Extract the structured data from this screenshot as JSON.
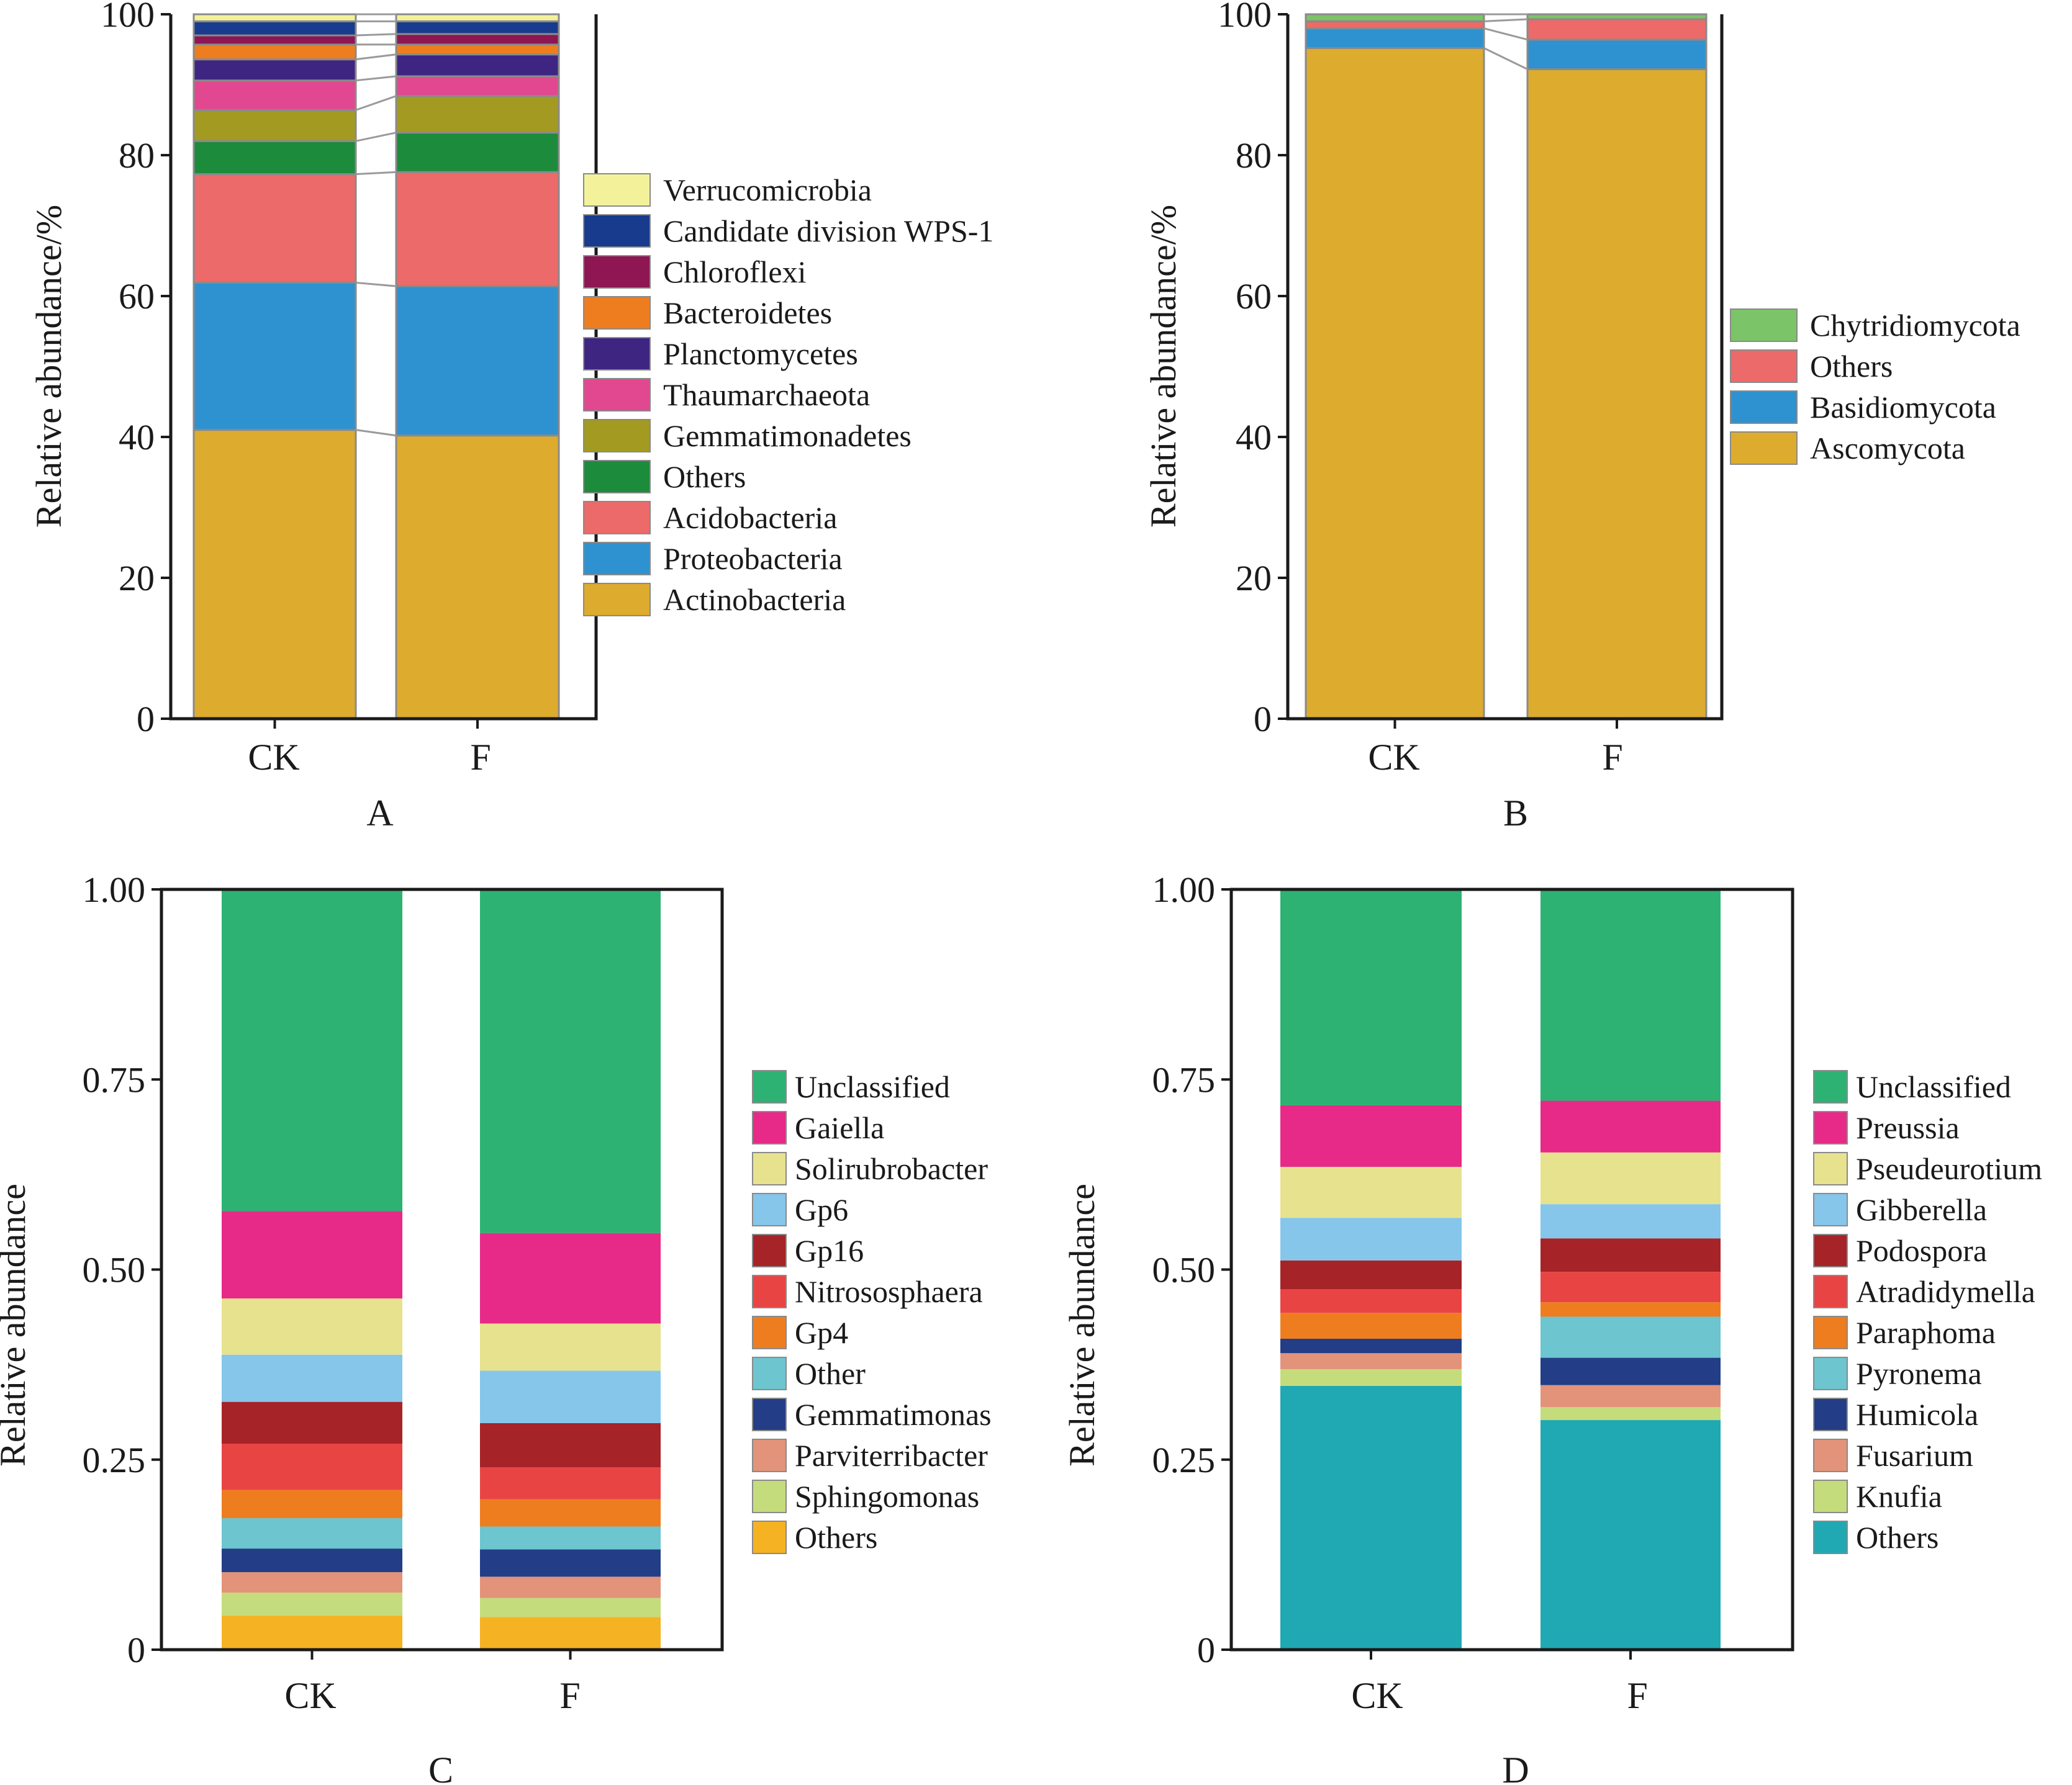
{
  "chart_data": [
    {
      "type": "bar",
      "panel_label": "A",
      "stacked": true,
      "ylabel": "Relative abundance/%",
      "ylim": [
        0,
        100
      ],
      "yticks": [
        0,
        20,
        40,
        60,
        80,
        100
      ],
      "categories": [
        "CK",
        "F"
      ],
      "series": [
        {
          "name": "Actinobacteria",
          "color": "#DDAB2E",
          "values": [
            41.0,
            40.2
          ]
        },
        {
          "name": "Proteobacteria",
          "color": "#2E92D1",
          "values": [
            20.9,
            21.2
          ]
        },
        {
          "name": "Acidobacteria",
          "color": "#EC6A69",
          "values": [
            15.4,
            16.2
          ]
        },
        {
          "name": "Others",
          "color": "#1D8B3C",
          "values": [
            4.7,
            5.6
          ]
        },
        {
          "name": "Gemmatimonadetes",
          "color": "#A39A22",
          "values": [
            4.4,
            5.2
          ]
        },
        {
          "name": "Thaumarchaeota",
          "color": "#E2488F",
          "values": [
            4.2,
            2.8
          ]
        },
        {
          "name": "Planctomycetes",
          "color": "#3E2582",
          "values": [
            3.0,
            3.1
          ]
        },
        {
          "name": "Bacteroidetes",
          "color": "#EE7D20",
          "values": [
            2.1,
            1.4
          ]
        },
        {
          "name": "Chloroflexi",
          "color": "#8E1652",
          "values": [
            1.3,
            1.5
          ]
        },
        {
          "name": "Candidate division WPS-1",
          "color": "#183B8E",
          "values": [
            2.0,
            1.8
          ]
        },
        {
          "name": "Verrucomicrobia",
          "color": "#F3F29A",
          "values": [
            1.0,
            1.0
          ]
        }
      ],
      "legend_position": "right"
    },
    {
      "type": "bar",
      "panel_label": "B",
      "stacked": true,
      "ylabel": "Relative abundance/%",
      "ylim": [
        0,
        100
      ],
      "yticks": [
        0,
        20,
        40,
        60,
        80,
        100
      ],
      "categories": [
        "CK",
        "F"
      ],
      "series": [
        {
          "name": "Ascomycota",
          "color": "#DDAB2E",
          "values": [
            95.2,
            92.2
          ]
        },
        {
          "name": "Basidiomycota",
          "color": "#2E92D1",
          "values": [
            2.8,
            4.2
          ]
        },
        {
          "name": "Others",
          "color": "#EC6A69",
          "values": [
            1.0,
            2.9
          ]
        },
        {
          "name": "Chytridiomycota",
          "color": "#7BC467",
          "values": [
            1.0,
            0.7
          ]
        }
      ],
      "legend_position": "right"
    },
    {
      "type": "bar",
      "panel_label": "C",
      "stacked": true,
      "ylabel": "Relative abundance",
      "ylim": [
        0,
        1
      ],
      "yticks": [
        0,
        0.25,
        0.5,
        0.75,
        1.0
      ],
      "ytick_labels": [
        "0",
        "0.25",
        "0.50",
        "0.75",
        "1.00"
      ],
      "categories": [
        "CK",
        "F"
      ],
      "series": [
        {
          "name": "Others",
          "color": "#F5B223",
          "values": [
            0.045,
            0.043
          ]
        },
        {
          "name": "Sphingomonas",
          "color": "#C4DC7B",
          "values": [
            0.03,
            0.025
          ]
        },
        {
          "name": "Parviterribacter",
          "color": "#E2937A",
          "values": [
            0.027,
            0.028
          ]
        },
        {
          "name": "Gemmatimonas",
          "color": "#233E86",
          "values": [
            0.031,
            0.036
          ]
        },
        {
          "name": "Other",
          "color": "#6CC5CF",
          "values": [
            0.04,
            0.03
          ]
        },
        {
          "name": "Gp4",
          "color": "#EE7D20",
          "values": [
            0.037,
            0.036
          ]
        },
        {
          "name": "Nitrososphaera",
          "color": "#E94444",
          "values": [
            0.061,
            0.042
          ]
        },
        {
          "name": "Gp16",
          "color": "#A62328",
          "values": [
            0.055,
            0.058
          ]
        },
        {
          "name": "Gp6",
          "color": "#85C6EA",
          "values": [
            0.062,
            0.069
          ]
        },
        {
          "name": "Solirubrobacter",
          "color": "#E7E28D",
          "values": [
            0.074,
            0.062
          ]
        },
        {
          "name": "Gaiella",
          "color": "#E72A87",
          "values": [
            0.115,
            0.119
          ]
        },
        {
          "name": "Unclassified",
          "color": "#2DB274",
          "values": [
            0.423,
            0.452
          ]
        }
      ],
      "legend_position": "right"
    },
    {
      "type": "bar",
      "panel_label": "D",
      "stacked": true,
      "ylabel": "Relative abundance",
      "ylim": [
        0,
        1
      ],
      "yticks": [
        0,
        0.25,
        0.5,
        0.75,
        1.0
      ],
      "ytick_labels": [
        "0",
        "0.25",
        "0.50",
        "0.75",
        "1.00"
      ],
      "categories": [
        "CK",
        "F"
      ],
      "series": [
        {
          "name": "Others",
          "color": "#20A8B3",
          "values": [
            0.347,
            0.302
          ]
        },
        {
          "name": "Knufia",
          "color": "#C4DC7B",
          "values": [
            0.022,
            0.017
          ]
        },
        {
          "name": "Fusarium",
          "color": "#E2937A",
          "values": [
            0.021,
            0.029
          ]
        },
        {
          "name": "Humicola",
          "color": "#233E86",
          "values": [
            0.019,
            0.036
          ]
        },
        {
          "name": "Pyronema",
          "color": "#6CC5CF",
          "values": [
            0.0,
            0.054
          ]
        },
        {
          "name": "Paraphoma",
          "color": "#EE7D20",
          "values": [
            0.034,
            0.019
          ]
        },
        {
          "name": "Atradidymella",
          "color": "#E94444",
          "values": [
            0.031,
            0.04
          ]
        },
        {
          "name": "Podospora",
          "color": "#A62328",
          "values": [
            0.038,
            0.044
          ]
        },
        {
          "name": "Gibberella",
          "color": "#85C6EA",
          "values": [
            0.056,
            0.045
          ]
        },
        {
          "name": "Pseudeurotium",
          "color": "#E7E28D",
          "values": [
            0.067,
            0.068
          ]
        },
        {
          "name": "Preussia",
          "color": "#E72A87",
          "values": [
            0.081,
            0.068
          ]
        },
        {
          "name": "Unclassified",
          "color": "#2DB274",
          "values": [
            0.284,
            0.278
          ]
        }
      ],
      "legend_order": [
        "Unclassified",
        "Preussia",
        "Pseudeurotium",
        "Gibberella",
        "Podospora",
        "Atradidymella",
        "Paraphoma",
        "Pyronema",
        "Humicola",
        "Fusarium",
        "Knufia",
        "Others"
      ],
      "legend_position": "right"
    }
  ]
}
